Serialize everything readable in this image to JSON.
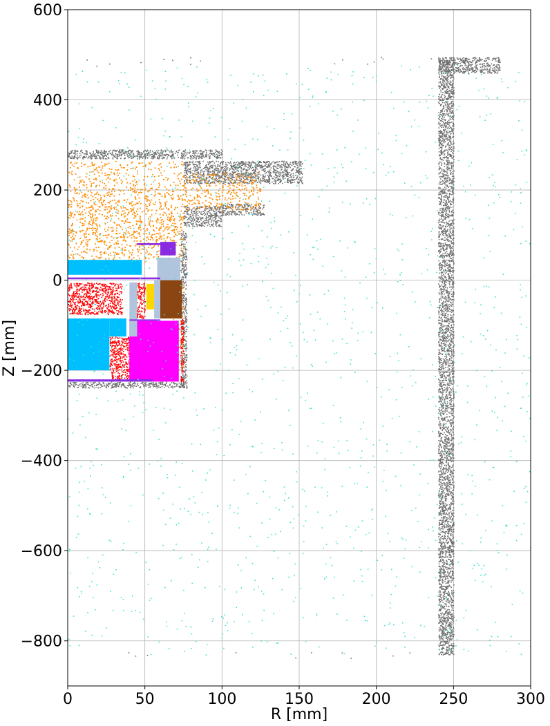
{
  "chart_data": {
    "type": "scatter",
    "title": "",
    "xlabel": "R [mm]",
    "ylabel": "Z [mm]",
    "xlim": [
      0,
      300
    ],
    "ylim": [
      -900,
      600
    ],
    "xticks": [
      0,
      50,
      100,
      150,
      200,
      250,
      300
    ],
    "yticks": [
      -800,
      -600,
      -400,
      -200,
      0,
      200,
      400,
      600
    ],
    "xtick_labels": [
      "0",
      "50",
      "100",
      "150",
      "200",
      "250",
      "300"
    ],
    "ytick_labels": [
      "−800",
      "−600",
      "−400",
      "−200",
      "0",
      "200",
      "400",
      "600"
    ],
    "grid": true,
    "legend": "none",
    "regions": [
      {
        "color": "#707070",
        "density": "dense",
        "r": [
          240,
          250
        ],
        "z": [
          -830,
          490
        ]
      },
      {
        "color": "#707070",
        "density": "sparse",
        "r": [
          10,
          250
        ],
        "z": [
          -838,
          -825
        ]
      },
      {
        "color": "#707070",
        "density": "sparse",
        "r": [
          10,
          240
        ],
        "z": [
          475,
          495
        ]
      },
      {
        "color": "#707070",
        "density": "dense",
        "r": [
          240,
          280
        ],
        "z": [
          460,
          495
        ]
      },
      {
        "color": "#707070",
        "density": "dense",
        "r": [
          0,
          100
        ],
        "z": [
          270,
          290
        ]
      },
      {
        "color": "#707070",
        "density": "dense",
        "r": [
          75,
          152
        ],
        "z": [
          215,
          265
        ]
      },
      {
        "color": "#707070",
        "density": "dense",
        "r": [
          75,
          100
        ],
        "z": [
          120,
          165
        ]
      },
      {
        "color": "#707070",
        "density": "dense",
        "r": [
          100,
          127
        ],
        "z": [
          145,
          170
        ]
      },
      {
        "color": "#707070",
        "density": "dense",
        "r": [
          73,
          77
        ],
        "z": [
          -235,
          110
        ]
      },
      {
        "color": "#707070",
        "density": "dense",
        "r": [
          0,
          77
        ],
        "z": [
          -238,
          -225
        ]
      },
      {
        "color": "#FF8C00",
        "density": "gradient",
        "r": [
          0,
          75
        ],
        "z": [
          40,
          265
        ]
      },
      {
        "color": "#FF8C00",
        "density": "gradient",
        "r": [
          75,
          125
        ],
        "z": [
          155,
          240
        ]
      },
      {
        "color": "#FF8C00",
        "density": "medium",
        "r": [
          65,
          75
        ],
        "z": [
          -200,
          0
        ]
      },
      {
        "color": "#00BFFF",
        "density": "solid",
        "r": [
          0,
          48
        ],
        "z": [
          12,
          45
        ]
      },
      {
        "color": "#00BFFF",
        "density": "solid",
        "r": [
          0,
          27
        ],
        "z": [
          -200,
          -85
        ]
      },
      {
        "color": "#00BFFF",
        "density": "solid",
        "r": [
          27,
          38
        ],
        "z": [
          -125,
          -85
        ]
      },
      {
        "color": "#FF0000",
        "density": "dense",
        "r": [
          0,
          35
        ],
        "z": [
          -75,
          -5
        ]
      },
      {
        "color": "#FF0000",
        "density": "dense",
        "r": [
          27,
          40
        ],
        "z": [
          -220,
          -125
        ]
      },
      {
        "color": "#FF0000",
        "density": "dense",
        "r": [
          40,
          50
        ],
        "z": [
          -85,
          -5
        ]
      },
      {
        "color": "#FF0000",
        "density": "dense",
        "r": [
          73,
          75
        ],
        "z": [
          -225,
          -85
        ]
      },
      {
        "color": "#FF00FF",
        "density": "solid",
        "r": [
          40,
          72
        ],
        "z": [
          -225,
          -90
        ]
      },
      {
        "color": "#FFD700",
        "density": "solid",
        "r": [
          51,
          56
        ],
        "z": [
          -65,
          -8
        ]
      },
      {
        "color": "#8B4513",
        "density": "solid",
        "r": [
          60,
          74
        ],
        "z": [
          -85,
          0
        ]
      },
      {
        "color": "#B0C4DE",
        "density": "solid",
        "r": [
          58,
          73
        ],
        "z": [
          0,
          50
        ]
      },
      {
        "color": "#B0C4DE",
        "density": "solid",
        "r": [
          40,
          45
        ],
        "z": [
          -125,
          -5
        ]
      },
      {
        "color": "#B0C4DE",
        "density": "solid",
        "r": [
          56,
          60
        ],
        "z": [
          -85,
          0
        ]
      },
      {
        "color": "#8A2BE2",
        "density": "solid",
        "r": [
          60,
          70
        ],
        "z": [
          55,
          85
        ]
      },
      {
        "color": "#8A2BE2",
        "density": "solid",
        "r": [
          45,
          62
        ],
        "z": [
          78,
          82
        ]
      },
      {
        "color": "#8A2BE2",
        "density": "solid",
        "r": [
          0,
          55
        ],
        "z": [
          -225,
          -220
        ]
      },
      {
        "color": "#8A2BE2",
        "density": "solid",
        "r": [
          0,
          60
        ],
        "z": [
          2,
          6
        ]
      },
      {
        "color": "#8A2BE2",
        "density": "solid",
        "r": [
          40,
          60
        ],
        "z": [
          -90,
          -87
        ]
      },
      {
        "color": "#40E0D0",
        "density": "sparse",
        "r": [
          0,
          300
        ],
        "z": [
          -830,
          480
        ]
      }
    ]
  }
}
